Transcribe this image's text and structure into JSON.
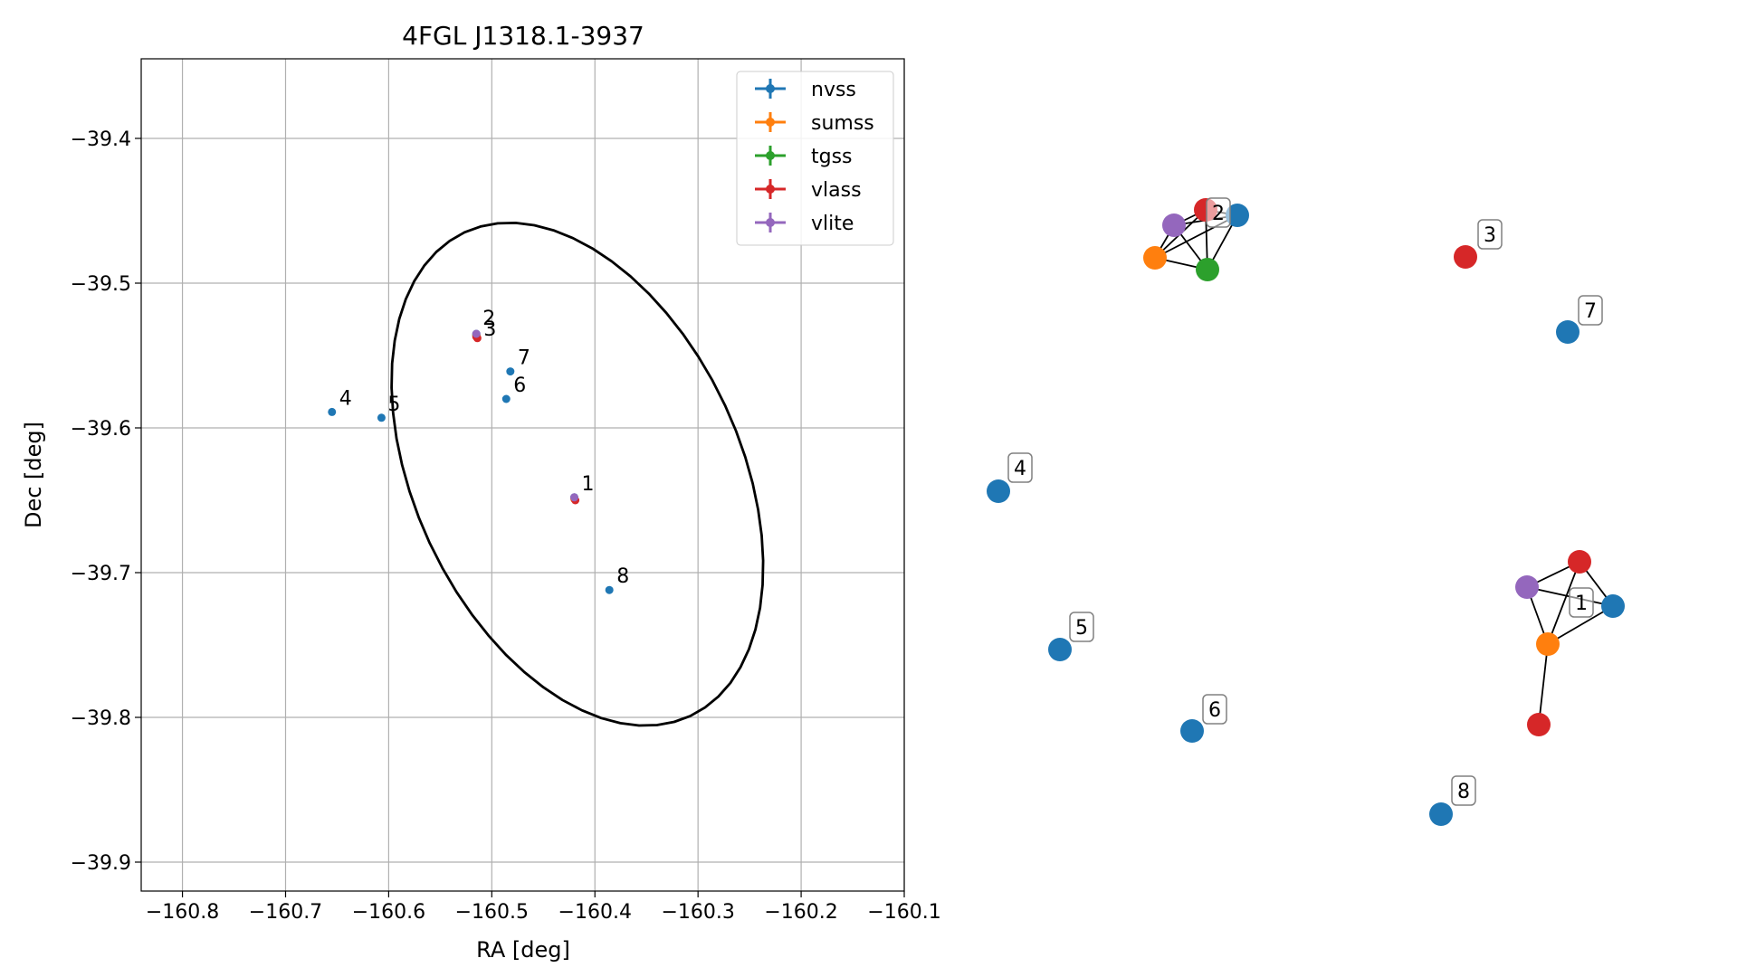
{
  "chart_data": [
    {
      "type": "scatter",
      "title": "4FGL J1318.1-3937",
      "xlabel": "RA [deg]",
      "ylabel": "Dec [deg]",
      "xlim": [
        -160.84,
        -160.1
      ],
      "ylim": [
        -39.92,
        -39.345
      ],
      "xticks": [
        -160.8,
        -160.7,
        -160.6,
        -160.5,
        -160.4,
        -160.3,
        -160.2,
        -160.1
      ],
      "xtick_labels": [
        "−160.8",
        "−160.7",
        "−160.6",
        "−160.5",
        "−160.4",
        "−160.3",
        "−160.2",
        "−160.1"
      ],
      "yticks": [
        -39.4,
        -39.5,
        -39.6,
        -39.7,
        -39.8,
        -39.9
      ],
      "ytick_labels": [
        "−39.4",
        "−39.5",
        "−39.6",
        "−39.7",
        "−39.8",
        "−39.9"
      ],
      "grid": true,
      "legend_position": "top-right",
      "series": [
        {
          "name": "nvss",
          "color": "#1f77b4",
          "points": [
            {
              "ra": -160.42,
              "dec": -39.648,
              "label": "1"
            },
            {
              "ra": -160.515,
              "dec": -39.535,
              "label": "2"
            },
            {
              "ra": -160.655,
              "dec": -39.589,
              "label": "4"
            },
            {
              "ra": -160.607,
              "dec": -39.593,
              "label": "5"
            },
            {
              "ra": -160.486,
              "dec": -39.58,
              "label": "6"
            },
            {
              "ra": -160.482,
              "dec": -39.561,
              "label": "7"
            },
            {
              "ra": -160.386,
              "dec": -39.712,
              "label": "8"
            }
          ]
        },
        {
          "name": "sumss",
          "color": "#ff7f0e",
          "points": [
            {
              "ra": -160.42,
              "dec": -39.649
            },
            {
              "ra": -160.515,
              "dec": -39.536
            }
          ]
        },
        {
          "name": "tgss",
          "color": "#2ca02c",
          "points": [
            {
              "ra": -160.515,
              "dec": -39.536
            }
          ]
        },
        {
          "name": "vlass",
          "color": "#d62728",
          "points": [
            {
              "ra": -160.419,
              "dec": -39.65
            },
            {
              "ra": -160.515,
              "dec": -39.537
            },
            {
              "ra": -160.514,
              "dec": -39.538,
              "label": "3"
            }
          ]
        },
        {
          "name": "vlite",
          "color": "#9467bd",
          "points": [
            {
              "ra": -160.42,
              "dec": -39.648
            },
            {
              "ra": -160.515,
              "dec": -39.535
            }
          ]
        }
      ],
      "ellipse": {
        "center_ra": -160.417,
        "center_dec": -39.632,
        "color": "#000000"
      }
    },
    {
      "type": "network",
      "nodes": [
        {
          "id": "n1",
          "color": "#1f77b4",
          "label": "1"
        },
        {
          "id": "r1a",
          "color": "#d62728"
        },
        {
          "id": "p1",
          "color": "#9467bd"
        },
        {
          "id": "o1",
          "color": "#ff7f0e"
        },
        {
          "id": "r1b",
          "color": "#d62728"
        },
        {
          "id": "n2",
          "color": "#1f77b4"
        },
        {
          "id": "r2",
          "color": "#d62728",
          "label": "2"
        },
        {
          "id": "p2",
          "color": "#9467bd"
        },
        {
          "id": "o2",
          "color": "#ff7f0e"
        },
        {
          "id": "g2",
          "color": "#2ca02c"
        },
        {
          "id": "r3",
          "color": "#d62728",
          "label": "3"
        },
        {
          "id": "n7",
          "color": "#1f77b4",
          "label": "7"
        },
        {
          "id": "n4",
          "color": "#1f77b4",
          "label": "4"
        },
        {
          "id": "n5",
          "color": "#1f77b4",
          "label": "5"
        },
        {
          "id": "n6",
          "color": "#1f77b4",
          "label": "6"
        },
        {
          "id": "n8",
          "color": "#1f77b4",
          "label": "8"
        }
      ],
      "edges": [
        [
          "r1a",
          "p1"
        ],
        [
          "r1a",
          "n1"
        ],
        [
          "r1a",
          "o1"
        ],
        [
          "p1",
          "n1"
        ],
        [
          "p1",
          "o1"
        ],
        [
          "n1",
          "o1"
        ],
        [
          "o1",
          "r1b"
        ],
        [
          "p2",
          "r2"
        ],
        [
          "p2",
          "n2"
        ],
        [
          "p2",
          "o2"
        ],
        [
          "p2",
          "g2"
        ],
        [
          "r2",
          "n2"
        ],
        [
          "r2",
          "o2"
        ],
        [
          "r2",
          "g2"
        ],
        [
          "n2",
          "o2"
        ],
        [
          "n2",
          "g2"
        ],
        [
          "o2",
          "g2"
        ]
      ]
    }
  ]
}
